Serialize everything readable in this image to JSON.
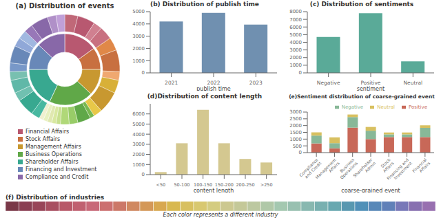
{
  "chart_data": [
    {
      "type": "pie",
      "title": "(a) Distribution of events",
      "legend": "bottom",
      "series": [
        {
          "categories": [
            "Financial Affairs",
            "Stock Affairs",
            "Management Affairs",
            "Business Operations",
            "Shareholder Affairs",
            "Financing and Investment",
            "Compliance and Credit"
          ],
          "values": [
            15,
            10,
            12,
            20,
            18,
            12,
            13
          ],
          "colors": [
            "#b85870",
            "#c87040",
            "#c89830",
            "#60a848",
            "#38a890",
            "#6888b8",
            "#8868a8"
          ]
        },
        {
          "values": [
            3,
            4,
            2,
            3,
            3,
            5,
            2,
            3,
            5,
            2,
            1,
            3,
            2,
            2,
            1,
            1,
            1,
            1,
            1,
            2,
            4,
            2,
            3,
            2,
            2,
            4,
            2,
            2,
            2,
            4,
            2,
            2
          ],
          "colors": [
            "#c06878",
            "#b85870",
            "#d08090",
            "#c87080",
            "#e08848",
            "#c87040",
            "#f0a870",
            "#d8b038",
            "#c89830",
            "#e8c848",
            "#78b850",
            "#60a848",
            "#98cc68",
            "#b0d878",
            "#c8e090",
            "#d8e8a0",
            "#e0e8b0",
            "#e8f0c0",
            "#f0f0d0",
            "#48b8a0",
            "#38a890",
            "#70c0b0",
            "#60b8a8",
            "#78c0b0",
            "#7898c8",
            "#6888b8",
            "#90a8d8",
            "#a0b8e0",
            "#9878b8",
            "#8868a8",
            "#b090c8",
            "#c0a0d8"
          ]
        }
      ]
    },
    {
      "type": "bar",
      "title": "(b) Distribution of publish time",
      "xlabel": "publish time",
      "categories": [
        "2021",
        "2022",
        "2023"
      ],
      "values": [
        4200,
        4900,
        3950
      ],
      "color": "#7090b0",
      "ylim": [
        0,
        5000
      ],
      "yticks": [
        0,
        1000,
        2000,
        3000,
        4000,
        5000
      ],
      "grid": false
    },
    {
      "type": "bar",
      "title": "(c) Distribution of sentiments",
      "xlabel": "sentiment",
      "categories": [
        "Negative",
        "Positive",
        "Neutral"
      ],
      "values": [
        4700,
        7800,
        1500
      ],
      "color": "#5aaa98",
      "ylim": [
        0,
        8000
      ],
      "yticks": [
        0,
        1000,
        2000,
        3000,
        4000,
        5000,
        6000,
        7000,
        8000
      ],
      "grid": false
    },
    {
      "type": "bar",
      "title": "(d)Distribution of content length",
      "xlabel": "content length",
      "categories": [
        "<50",
        "50-100",
        "100-150",
        "150-200",
        "200-250",
        ">250"
      ],
      "values": [
        250,
        3100,
        6400,
        3100,
        1550,
        1200
      ],
      "color": "#d4c890",
      "ylim": [
        0,
        7000
      ],
      "yticks": [
        0,
        1000,
        2000,
        3000,
        4000,
        5000,
        6000
      ],
      "grid": false
    },
    {
      "type": "bar",
      "stacked": true,
      "title": "(e)Sentiment distribution of coarse-grained event",
      "xlabel": "coarse-grained event",
      "categories": [
        "Compliance\nand Credit",
        "Management\nAffairs",
        "Business\nOperations",
        "Shareholder\nAdmin",
        "Stock\nAffairs",
        "Financing and\nInvestment",
        "Financial\nAffairs"
      ],
      "series": [
        {
          "name": "Positive",
          "color": "#c86858",
          "values": [
            680,
            320,
            1850,
            1000,
            1150,
            1150,
            1150
          ]
        },
        {
          "name": "Negative",
          "color": "#88b898",
          "values": [
            580,
            380,
            780,
            620,
            200,
            200,
            680
          ]
        },
        {
          "name": "Neutral",
          "color": "#d8c060",
          "values": [
            240,
            430,
            190,
            280,
            140,
            140,
            190
          ]
        }
      ],
      "ylim": [
        0,
        3000
      ],
      "yticks": [
        0,
        500,
        1000,
        1500,
        2000,
        2500,
        3000
      ],
      "legend": "upper right",
      "grid": false
    },
    {
      "type": "bar",
      "orientation": "horizontal",
      "stacked": true,
      "tick_labels": false,
      "title": "(f) Distribution of industries",
      "annotation": "Each color represents a different industry",
      "xlim": [
        0,
        32
      ],
      "values": [
        1,
        1,
        1,
        1,
        1,
        1,
        1,
        1,
        1,
        1,
        1,
        1,
        1,
        1,
        1,
        1,
        1,
        1,
        1,
        1,
        1,
        1,
        1,
        1,
        1,
        1,
        1,
        1,
        1,
        1,
        1,
        1
      ],
      "colors": [
        "#7a3848",
        "#8a3e52",
        "#984458",
        "#a84e60",
        "#b85868",
        "#c06070",
        "#c86878",
        "#cc7070",
        "#cc7868",
        "#d08860",
        "#d49858",
        "#d8a850",
        "#d8b850",
        "#d8c060",
        "#d8c870",
        "#d4cc80",
        "#ccc890",
        "#c4c898",
        "#bcc8a0",
        "#b0c8a8",
        "#a4c8b0",
        "#98c0b0",
        "#88b8b0",
        "#78b0b0",
        "#68a8b0",
        "#5898b0",
        "#5090b8",
        "#5888b8",
        "#6080b8",
        "#7878b8",
        "#8870b0",
        "#9870b0"
      ]
    }
  ]
}
